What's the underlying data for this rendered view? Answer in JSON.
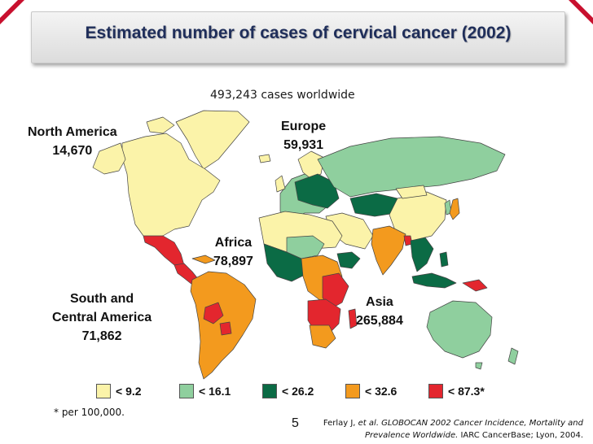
{
  "slide": {
    "title": "Estimated number of cases of cervical cancer (2002)",
    "subtitle": "493,243 cases worldwide",
    "page_number": "5",
    "footnote": "* per 100,000."
  },
  "regions": {
    "north_america": {
      "name": "North America",
      "cases": "14,670"
    },
    "europe": {
      "name": "Europe",
      "cases": "59,931"
    },
    "africa": {
      "name": "Africa",
      "cases": "78,897"
    },
    "south_central_america": {
      "name_line1": "South and",
      "name_line2": "Central America",
      "cases": "71,862"
    },
    "asia": {
      "name": "Asia",
      "cases": "265,884"
    }
  },
  "legend": [
    {
      "label": "< 9.2",
      "color": "#fbf3a9"
    },
    {
      "label": "< 16.1",
      "color": "#8fcf9e"
    },
    {
      "label": "< 26.2",
      "color": "#0b6b45"
    },
    {
      "label": "< 32.6",
      "color": "#f39a1e"
    },
    {
      "label": "< 87.3*",
      "color": "#e3262e"
    }
  ],
  "citation": {
    "authors": "Ferlay J, ",
    "et_al": "et al.",
    "work_title_line1": " GLOBOCAN 2002 Cancer Incidence, Mortality and",
    "work_title_line2": "Prevalence Worldwide.",
    "publisher": " IARC CancerBase; Lyon, 2004."
  },
  "colors": {
    "title_text": "#1f2e5a",
    "accent_red": "#c8102e",
    "border": "#444444"
  }
}
